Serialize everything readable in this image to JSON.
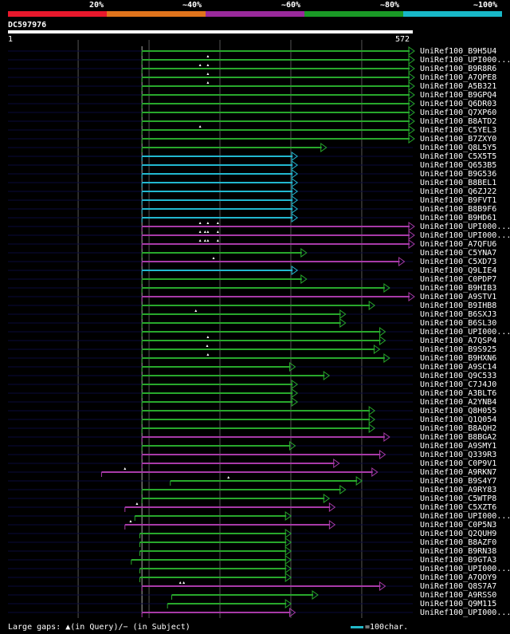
{
  "scale": {
    "colors": [
      "#e8182c",
      "#e0741c",
      "#9a2a9c",
      "#1a9a26",
      "#18b8c8"
    ],
    "labels": [
      "20%",
      "~40%",
      "~60%",
      "~80%",
      "~100%"
    ]
  },
  "query": {
    "name": "DC597976",
    "start_label": "1",
    "end_label": "572"
  },
  "colors": {
    "green": "#28a82c",
    "cyan": "#22b8d0",
    "magenta": "#a83aa8",
    "axis_line": "#0a0a3a"
  },
  "legend": {
    "gaps_text": "Large gaps: ▲(in Query)/− (in Subject)",
    "scale_text": "=100char."
  },
  "chart_data": {
    "type": "bar",
    "query_length": 572,
    "series": [
      {
        "name": "UniRef100_B9H5U4",
        "start": 190,
        "end": 572,
        "color": "green",
        "qgaps": []
      },
      {
        "name": "UniRef100_UPI000...",
        "start": 190,
        "end": 572,
        "color": "green",
        "qgaps": [
          283
        ]
      },
      {
        "name": "UniRef100_B9R8R6",
        "start": 190,
        "end": 572,
        "color": "green",
        "qgaps": [
          272,
          283
        ]
      },
      {
        "name": "UniRef100_A7QPE8",
        "start": 190,
        "end": 572,
        "color": "green",
        "qgaps": [
          283
        ]
      },
      {
        "name": "UniRef100_A5B321",
        "start": 190,
        "end": 572,
        "color": "green",
        "qgaps": [
          283
        ]
      },
      {
        "name": "UniRef100_B9GPQ4",
        "start": 190,
        "end": 572,
        "color": "green",
        "qgaps": []
      },
      {
        "name": "UniRef100_Q6DR03",
        "start": 190,
        "end": 572,
        "color": "green",
        "qgaps": []
      },
      {
        "name": "UniRef100_Q7XP60",
        "start": 190,
        "end": 572,
        "color": "green",
        "qgaps": []
      },
      {
        "name": "UniRef100_B8ATD2",
        "start": 190,
        "end": 572,
        "color": "green",
        "qgaps": []
      },
      {
        "name": "UniRef100_C5YEL3",
        "start": 190,
        "end": 572,
        "color": "green",
        "qgaps": [
          272
        ]
      },
      {
        "name": "UniRef100_B7ZXY0",
        "start": 190,
        "end": 572,
        "color": "green",
        "qgaps": []
      },
      {
        "name": "UniRef100_Q8L5Y5",
        "start": 190,
        "end": 448,
        "color": "green",
        "qgaps": []
      },
      {
        "name": "UniRef100_C5X5T5",
        "start": 190,
        "end": 407,
        "color": "cyan",
        "qgaps": []
      },
      {
        "name": "UniRef100_Q653B5",
        "start": 190,
        "end": 407,
        "color": "cyan",
        "qgaps": []
      },
      {
        "name": "UniRef100_B9G536",
        "start": 190,
        "end": 407,
        "color": "cyan",
        "qgaps": []
      },
      {
        "name": "UniRef100_B8BEL1",
        "start": 190,
        "end": 407,
        "color": "cyan",
        "qgaps": []
      },
      {
        "name": "UniRef100_Q6ZJ22",
        "start": 190,
        "end": 407,
        "color": "cyan",
        "qgaps": []
      },
      {
        "name": "UniRef100_B9FVT1",
        "start": 190,
        "end": 407,
        "color": "cyan",
        "qgaps": []
      },
      {
        "name": "UniRef100_B8B9F6",
        "start": 190,
        "end": 407,
        "color": "cyan",
        "qgaps": []
      },
      {
        "name": "UniRef100_B9HD61",
        "start": 190,
        "end": 407,
        "color": "cyan",
        "qgaps": []
      },
      {
        "name": "UniRef100_UPI000...",
        "start": 190,
        "end": 572,
        "color": "magenta",
        "qgaps": [
          272,
          283,
          297
        ]
      },
      {
        "name": "UniRef100_UPI000...",
        "start": 190,
        "end": 572,
        "color": "magenta",
        "qgaps": [
          272,
          279,
          283,
          297
        ]
      },
      {
        "name": "UniRef100_A7QFU6",
        "start": 190,
        "end": 572,
        "color": "magenta",
        "qgaps": [
          272,
          279,
          283,
          297
        ]
      },
      {
        "name": "UniRef100_C5YNA7",
        "start": 190,
        "end": 420,
        "color": "green",
        "qgaps": []
      },
      {
        "name": "UniRef100_C5XD73",
        "start": 190,
        "end": 558,
        "color": "magenta",
        "qgaps": [
          291
        ]
      },
      {
        "name": "UniRef100_Q9LIE4",
        "start": 190,
        "end": 407,
        "color": "cyan",
        "qgaps": []
      },
      {
        "name": "UniRef100_C0PDP7",
        "start": 190,
        "end": 420,
        "color": "green",
        "qgaps": []
      },
      {
        "name": "UniRef100_B9HIB3",
        "start": 190,
        "end": 537,
        "color": "green",
        "qgaps": []
      },
      {
        "name": "UniRef100_A9STV1",
        "start": 190,
        "end": 572,
        "color": "magenta",
        "qgaps": []
      },
      {
        "name": "UniRef100_B9IHB8",
        "start": 190,
        "end": 516,
        "color": "green",
        "qgaps": []
      },
      {
        "name": "UniRef100_B6SXJ3",
        "start": 190,
        "end": 475,
        "color": "green",
        "qgaps": [
          266
        ]
      },
      {
        "name": "UniRef100_B6SL30",
        "start": 190,
        "end": 475,
        "color": "green",
        "qgaps": []
      },
      {
        "name": "UniRef100_UPI000...",
        "start": 190,
        "end": 531,
        "color": "green",
        "qgaps": []
      },
      {
        "name": "UniRef100_A7QSP4",
        "start": 190,
        "end": 531,
        "color": "green",
        "qgaps": [
          283
        ]
      },
      {
        "name": "UniRef100_B9S925",
        "start": 190,
        "end": 523,
        "color": "green",
        "qgaps": [
          282
        ]
      },
      {
        "name": "UniRef100_B9HXN6",
        "start": 190,
        "end": 537,
        "color": "green",
        "qgaps": [
          283
        ]
      },
      {
        "name": "UniRef100_A9SC14",
        "start": 190,
        "end": 404,
        "color": "green",
        "qgaps": []
      },
      {
        "name": "UniRef100_Q9C533",
        "start": 190,
        "end": 452,
        "color": "green",
        "qgaps": []
      },
      {
        "name": "UniRef100_C7J4J0",
        "start": 190,
        "end": 407,
        "color": "green",
        "qgaps": []
      },
      {
        "name": "UniRef100_A3BLT6",
        "start": 190,
        "end": 407,
        "color": "green",
        "qgaps": []
      },
      {
        "name": "UniRef100_A2YNB4",
        "start": 190,
        "end": 407,
        "color": "green",
        "qgaps": []
      },
      {
        "name": "UniRef100_Q8H055",
        "start": 190,
        "end": 516,
        "color": "green",
        "qgaps": []
      },
      {
        "name": "UniRef100_Q1Q054",
        "start": 190,
        "end": 516,
        "color": "green",
        "qgaps": []
      },
      {
        "name": "UniRef100_B8AQH2",
        "start": 190,
        "end": 516,
        "color": "green",
        "qgaps": []
      },
      {
        "name": "UniRef100_B8BGA2",
        "start": 190,
        "end": 537,
        "color": "magenta",
        "qgaps": []
      },
      {
        "name": "UniRef100_A9SMY1",
        "start": 190,
        "end": 404,
        "color": "green",
        "qgaps": []
      },
      {
        "name": "UniRef100_Q339R3",
        "start": 190,
        "end": 531,
        "color": "magenta",
        "qgaps": []
      },
      {
        "name": "UniRef100_C0P9V1",
        "start": 190,
        "end": 466,
        "color": "magenta",
        "qgaps": []
      },
      {
        "name": "UniRef100_A9RKN7",
        "start": 133,
        "end": 520,
        "color": "magenta",
        "qgaps": [
          166
        ]
      },
      {
        "name": "UniRef100_B9S4Y7",
        "start": 230,
        "end": 498,
        "color": "green",
        "qgaps": [
          312
        ]
      },
      {
        "name": "UniRef100_A9RY83",
        "start": 190,
        "end": 475,
        "color": "green",
        "qgaps": []
      },
      {
        "name": "UniRef100_C5WTP8",
        "start": 190,
        "end": 452,
        "color": "green",
        "qgaps": []
      },
      {
        "name": "UniRef100_C5XZT6",
        "start": 166,
        "end": 460,
        "color": "magenta",
        "qgaps": [
          183
        ]
      },
      {
        "name": "UniRef100_UPI000...",
        "start": 180,
        "end": 398,
        "color": "green",
        "qgaps": []
      },
      {
        "name": "UniRef100_C0P5N3",
        "start": 166,
        "end": 460,
        "color": "magenta",
        "qgaps": [
          174
        ]
      },
      {
        "name": "UniRef100_Q2QUH9",
        "start": 187,
        "end": 398,
        "color": "green",
        "qgaps": []
      },
      {
        "name": "UniRef100_B8AZF0",
        "start": 187,
        "end": 398,
        "color": "green",
        "qgaps": []
      },
      {
        "name": "UniRef100_B9RN38",
        "start": 187,
        "end": 398,
        "color": "green",
        "qgaps": []
      },
      {
        "name": "UniRef100_B9GTA3",
        "start": 175,
        "end": 398,
        "color": "green",
        "qgaps": []
      },
      {
        "name": "UniRef100_UPI000...",
        "start": 187,
        "end": 398,
        "color": "green",
        "qgaps": []
      },
      {
        "name": "UniRef100_A7QOY9",
        "start": 187,
        "end": 398,
        "color": "green",
        "qgaps": []
      },
      {
        "name": "UniRef100_Q8S7A7",
        "start": 190,
        "end": 531,
        "color": "magenta",
        "qgaps": [
          244,
          249
        ]
      },
      {
        "name": "UniRef100_A9RSS0",
        "start": 232,
        "end": 436,
        "color": "green",
        "qgaps": []
      },
      {
        "name": "UniRef100_Q9M115",
        "start": 226,
        "end": 398,
        "color": "green",
        "qgaps": []
      },
      {
        "name": "UniRef100_UPI000...",
        "start": 190,
        "end": 404,
        "color": "magenta",
        "qgaps": []
      }
    ]
  }
}
